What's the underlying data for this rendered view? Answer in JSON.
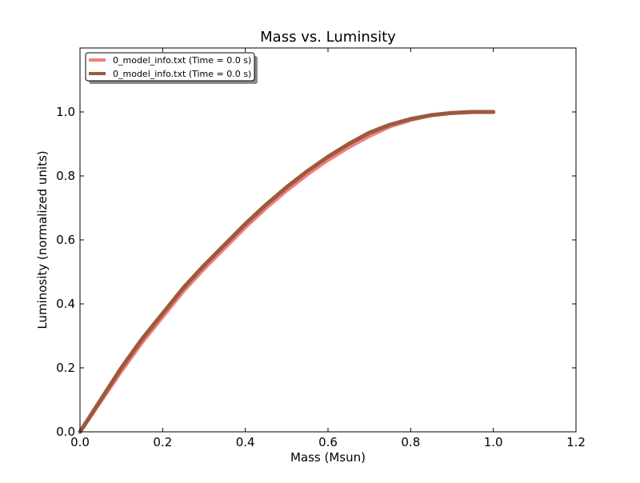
{
  "chart_data": {
    "type": "line",
    "title": "Mass vs. Luminsity",
    "xlabel": "Mass (Msun)",
    "ylabel": "Luminosity (normalized units)",
    "xlim": [
      0.0,
      1.2
    ],
    "ylim": [
      0.0,
      1.2
    ],
    "xticks": [
      0.0,
      0.2,
      0.4,
      0.6,
      0.8,
      1.0,
      1.2
    ],
    "xtick_labels": [
      "0.0",
      "0.2",
      "0.4",
      "0.6",
      "0.8",
      "1.0",
      "1.2"
    ],
    "yticks": [
      0.0,
      0.2,
      0.4,
      0.6,
      0.8,
      1.0
    ],
    "ytick_labels": [
      "0.0",
      "0.2",
      "0.4",
      "0.6",
      "0.8",
      "1.0"
    ],
    "grid": false,
    "legend_position": "top-left",
    "series": [
      {
        "name": "0_model_info.txt (Time = 0.0 s)",
        "color": "#f08080",
        "x": [
          0.0,
          0.05,
          0.1,
          0.15,
          0.2,
          0.25,
          0.3,
          0.35,
          0.4,
          0.45,
          0.5,
          0.55,
          0.6,
          0.65,
          0.7,
          0.75,
          0.8,
          0.85,
          0.9,
          0.95,
          1.0
        ],
        "y": [
          0.0,
          0.095,
          0.19,
          0.28,
          0.36,
          0.44,
          0.51,
          0.575,
          0.64,
          0.7,
          0.755,
          0.805,
          0.85,
          0.89,
          0.925,
          0.955,
          0.975,
          0.99,
          0.997,
          1.0,
          1.0
        ]
      },
      {
        "name": "0_model_info.txt (Time = 0.0 s)",
        "color": "#9b5a3c",
        "x": [
          0.0,
          0.05,
          0.1,
          0.15,
          0.2,
          0.25,
          0.3,
          0.35,
          0.4,
          0.45,
          0.5,
          0.55,
          0.6,
          0.65,
          0.7,
          0.75,
          0.8,
          0.85,
          0.9,
          0.95,
          1.0
        ],
        "y": [
          0.0,
          0.1,
          0.2,
          0.29,
          0.37,
          0.45,
          0.52,
          0.585,
          0.65,
          0.71,
          0.765,
          0.815,
          0.86,
          0.9,
          0.935,
          0.96,
          0.978,
          0.99,
          0.997,
          1.0,
          1.0
        ]
      }
    ]
  }
}
